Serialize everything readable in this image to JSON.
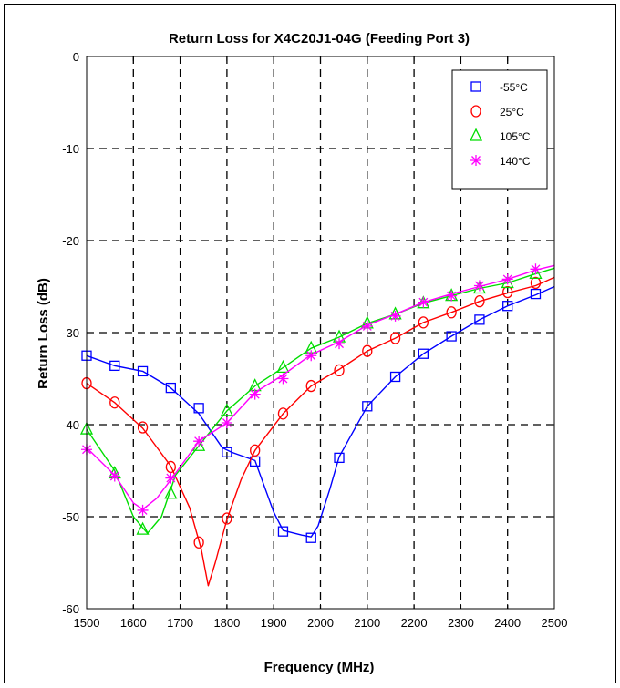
{
  "chart_data": {
    "type": "line",
    "title": "Return Loss for X4C20J1-04G (Feeding Port 3)",
    "xlabel": "Frequency (MHz)",
    "ylabel": "Return Loss (dB)",
    "xlim": [
      1500,
      2500
    ],
    "ylim": [
      -60,
      0
    ],
    "xticks": [
      1500,
      1600,
      1700,
      1800,
      1900,
      2000,
      2100,
      2200,
      2300,
      2400,
      2500
    ],
    "yticks": [
      0,
      -10,
      -20,
      -30,
      -40,
      -50,
      -60
    ],
    "xtick_labels": [
      "1500",
      "1600",
      "1700",
      "1800",
      "1900",
      "2000",
      "2100",
      "2200",
      "2300",
      "2400",
      "2500"
    ],
    "ytick_labels": [
      "0",
      "-10",
      "-20",
      "-30",
      "-40",
      "-50",
      "-60"
    ],
    "grid": true,
    "legend_position": "top-right",
    "series": [
      {
        "name": "-55°C",
        "color": "#0000ff",
        "marker": "square",
        "line": [
          [
            1500,
            -32.5
          ],
          [
            1560,
            -33.6
          ],
          [
            1620,
            -34.2
          ],
          [
            1680,
            -36
          ],
          [
            1740,
            -38.8
          ],
          [
            1790,
            -42.5
          ],
          [
            1810,
            -43
          ],
          [
            1860,
            -43.9
          ],
          [
            1900,
            -49.5
          ],
          [
            1920,
            -51.5
          ],
          [
            1960,
            -52
          ],
          [
            1980,
            -52.2
          ],
          [
            1995,
            -51
          ],
          [
            2020,
            -47
          ],
          [
            2040,
            -43.5
          ],
          [
            2100,
            -38
          ],
          [
            2160,
            -34.8
          ],
          [
            2220,
            -32.3
          ],
          [
            2280,
            -30.4
          ],
          [
            2340,
            -28.6
          ],
          [
            2400,
            -27.1
          ],
          [
            2460,
            -25.9
          ],
          [
            2500,
            -25
          ]
        ],
        "markers": [
          [
            1500,
            -32.5
          ],
          [
            1560,
            -33.6
          ],
          [
            1620,
            -34.2
          ],
          [
            1680,
            -36
          ],
          [
            1740,
            -38.2
          ],
          [
            1800,
            -43
          ],
          [
            1860,
            -44
          ],
          [
            1920,
            -51.6
          ],
          [
            1980,
            -52.3
          ],
          [
            2040,
            -43.6
          ],
          [
            2100,
            -38
          ],
          [
            2160,
            -34.8
          ],
          [
            2220,
            -32.3
          ],
          [
            2280,
            -30.4
          ],
          [
            2340,
            -28.6
          ],
          [
            2400,
            -27.1
          ],
          [
            2460,
            -25.8
          ]
        ]
      },
      {
        "name": "25°C",
        "color": "#ff0000",
        "marker": "circle",
        "line": [
          [
            1500,
            -35.5
          ],
          [
            1560,
            -37.6
          ],
          [
            1620,
            -40.4
          ],
          [
            1680,
            -44.5
          ],
          [
            1720,
            -49
          ],
          [
            1745,
            -53.5
          ],
          [
            1760,
            -57.5
          ],
          [
            1775,
            -55
          ],
          [
            1800,
            -50.3
          ],
          [
            1830,
            -46
          ],
          [
            1860,
            -42.8
          ],
          [
            1920,
            -38.8
          ],
          [
            1980,
            -35.8
          ],
          [
            2040,
            -34
          ],
          [
            2100,
            -32
          ],
          [
            2160,
            -30.6
          ],
          [
            2220,
            -28.9
          ],
          [
            2280,
            -27.8
          ],
          [
            2340,
            -26.6
          ],
          [
            2400,
            -25.7
          ],
          [
            2460,
            -24.9
          ],
          [
            2500,
            -24
          ]
        ],
        "markers": [
          [
            1500,
            -35.5
          ],
          [
            1560,
            -37.6
          ],
          [
            1620,
            -40.3
          ],
          [
            1680,
            -44.6
          ],
          [
            1740,
            -52.8
          ],
          [
            1800,
            -50.2
          ],
          [
            1860,
            -42.8
          ],
          [
            1920,
            -38.8
          ],
          [
            1980,
            -35.8
          ],
          [
            2040,
            -34.1
          ],
          [
            2100,
            -32
          ],
          [
            2160,
            -30.6
          ],
          [
            2220,
            -28.9
          ],
          [
            2280,
            -27.8
          ],
          [
            2340,
            -26.6
          ],
          [
            2400,
            -25.6
          ],
          [
            2460,
            -24.6
          ]
        ]
      },
      {
        "name": "105°C",
        "color": "#00dd00",
        "marker": "triangle",
        "line": [
          [
            1500,
            -40.5
          ],
          [
            1560,
            -45
          ],
          [
            1600,
            -50
          ],
          [
            1630,
            -51.8
          ],
          [
            1660,
            -50
          ],
          [
            1690,
            -45.5
          ],
          [
            1740,
            -42.3
          ],
          [
            1800,
            -38.5
          ],
          [
            1860,
            -35.8
          ],
          [
            1920,
            -33.8
          ],
          [
            1980,
            -31.7
          ],
          [
            2040,
            -30.5
          ],
          [
            2100,
            -29
          ],
          [
            2160,
            -28
          ],
          [
            2220,
            -26.8
          ],
          [
            2280,
            -26
          ],
          [
            2340,
            -25.2
          ],
          [
            2400,
            -24.6
          ],
          [
            2460,
            -23.6
          ],
          [
            2500,
            -23
          ]
        ],
        "markers": [
          [
            1500,
            -40.5
          ],
          [
            1560,
            -45.3
          ],
          [
            1620,
            -51.4
          ],
          [
            1680,
            -47.5
          ],
          [
            1740,
            -42.3
          ],
          [
            1800,
            -38.5
          ],
          [
            1860,
            -35.8
          ],
          [
            1920,
            -33.8
          ],
          [
            1980,
            -31.7
          ],
          [
            2040,
            -30.5
          ],
          [
            2100,
            -29
          ],
          [
            2160,
            -28
          ],
          [
            2220,
            -26.8
          ],
          [
            2280,
            -26
          ],
          [
            2340,
            -25.2
          ],
          [
            2400,
            -24.6
          ],
          [
            2460,
            -23.6
          ]
        ]
      },
      {
        "name": "140°C",
        "color": "#ff00ff",
        "marker": "asterisk",
        "line": [
          [
            1500,
            -42.5
          ],
          [
            1560,
            -45.5
          ],
          [
            1600,
            -48.5
          ],
          [
            1620,
            -49.2
          ],
          [
            1650,
            -48
          ],
          [
            1680,
            -46
          ],
          [
            1740,
            -41.8
          ],
          [
            1800,
            -39.8
          ],
          [
            1860,
            -36.5
          ],
          [
            1920,
            -34.6
          ],
          [
            1980,
            -32.4
          ],
          [
            2040,
            -31
          ],
          [
            2100,
            -29.2
          ],
          [
            2160,
            -28
          ],
          [
            2220,
            -26.7
          ],
          [
            2280,
            -25.8
          ],
          [
            2340,
            -25
          ],
          [
            2400,
            -24.2
          ],
          [
            2460,
            -23.2
          ],
          [
            2500,
            -22.7
          ]
        ],
        "markers": [
          [
            1500,
            -42.7
          ],
          [
            1560,
            -45.6
          ],
          [
            1620,
            -49.3
          ],
          [
            1680,
            -45.8
          ],
          [
            1740,
            -41.8
          ],
          [
            1800,
            -39.8
          ],
          [
            1860,
            -36.7
          ],
          [
            1920,
            -35
          ],
          [
            1980,
            -32.5
          ],
          [
            2040,
            -31.2
          ],
          [
            2100,
            -29.3
          ],
          [
            2160,
            -28.2
          ],
          [
            2220,
            -26.7
          ],
          [
            2280,
            -26
          ],
          [
            2340,
            -24.9
          ],
          [
            2400,
            -24.2
          ],
          [
            2460,
            -23.1
          ]
        ]
      }
    ]
  }
}
